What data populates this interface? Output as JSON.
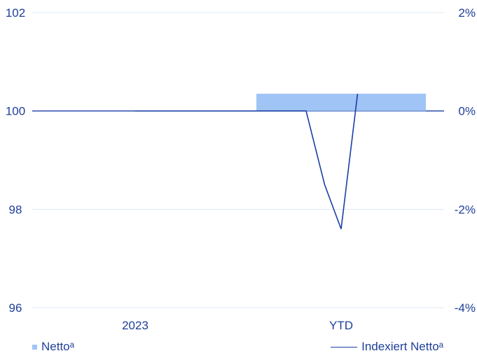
{
  "chart_data": {
    "type": "bar+line",
    "categories": [
      "2023",
      "YTD"
    ],
    "left_axis": {
      "ylim": [
        96,
        102
      ],
      "ticks": [
        "102",
        "100",
        "98",
        "96"
      ],
      "tick_values": [
        102,
        100,
        98,
        96
      ]
    },
    "right_axis": {
      "ylim": [
        -4,
        2
      ],
      "ticks": [
        "2%",
        "0%",
        "-2%",
        "-4%"
      ],
      "tick_values": [
        2,
        0,
        -2,
        -4
      ]
    },
    "series": [
      {
        "name": "Nettoᵃ",
        "type": "bar",
        "axis": "right",
        "unit": "%",
        "values": [
          0,
          0.35
        ],
        "color": "#a0c4f5"
      },
      {
        "name": "Indexiert Nettoᵃ",
        "type": "line",
        "axis": "left",
        "color": "#1a3fa6",
        "x": [
          0,
          0.83,
          0.92,
          1.0,
          1.08
        ],
        "values": [
          100,
          100,
          98.5,
          97.6,
          100.35
        ]
      }
    ],
    "grid": true,
    "legend_position": "bottom"
  },
  "legend": {
    "bar_label": "Nettoᵃ",
    "line_label": "Indexiert Nettoᵃ"
  },
  "colors": {
    "text": "#1f3f99",
    "grid": "#dfe8f5",
    "baseline": "#1a3fa6",
    "bar": "#a0c4f5",
    "line": "#1a3fa6"
  }
}
